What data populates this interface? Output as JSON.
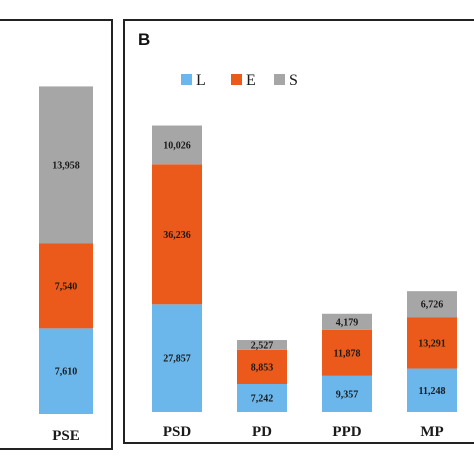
{
  "colors": {
    "L": "#6bb7ec",
    "E": "#eb5a1a",
    "S": "#a6a6a6",
    "frame": "#222222"
  },
  "chart_data": [
    {
      "type": "bar",
      "stacked": true,
      "panel": "",
      "categories": [
        "PSE"
      ],
      "series": [
        {
          "key": "L",
          "values": [
            7610
          ],
          "labels": [
            "7,610"
          ]
        },
        {
          "key": "E",
          "values": [
            7540
          ],
          "labels": [
            "7,540"
          ]
        },
        {
          "key": "S",
          "values": [
            13958
          ],
          "labels": [
            "13,958"
          ]
        }
      ]
    },
    {
      "type": "bar",
      "stacked": true,
      "panel": "B",
      "legend": [
        "L",
        "E",
        "S"
      ],
      "legend_position": "top-left",
      "categories": [
        "PSD",
        "PD",
        "PPD",
        "MP"
      ],
      "series": [
        {
          "key": "L",
          "name": "L",
          "values": [
            27857,
            7242,
            9357,
            11248
          ],
          "labels": [
            "27,857",
            "7,242",
            "9,357",
            "11,248"
          ]
        },
        {
          "key": "E",
          "name": "E",
          "values": [
            36236,
            8853,
            11878,
            13291
          ],
          "labels": [
            "36,236",
            "8,853",
            "11,878",
            "13,291"
          ]
        },
        {
          "key": "S",
          "name": "S",
          "values": [
            10026,
            2527,
            4179,
            6726
          ],
          "labels": [
            "10,026",
            "2,527",
            "4,179",
            "6,726"
          ]
        }
      ]
    }
  ]
}
